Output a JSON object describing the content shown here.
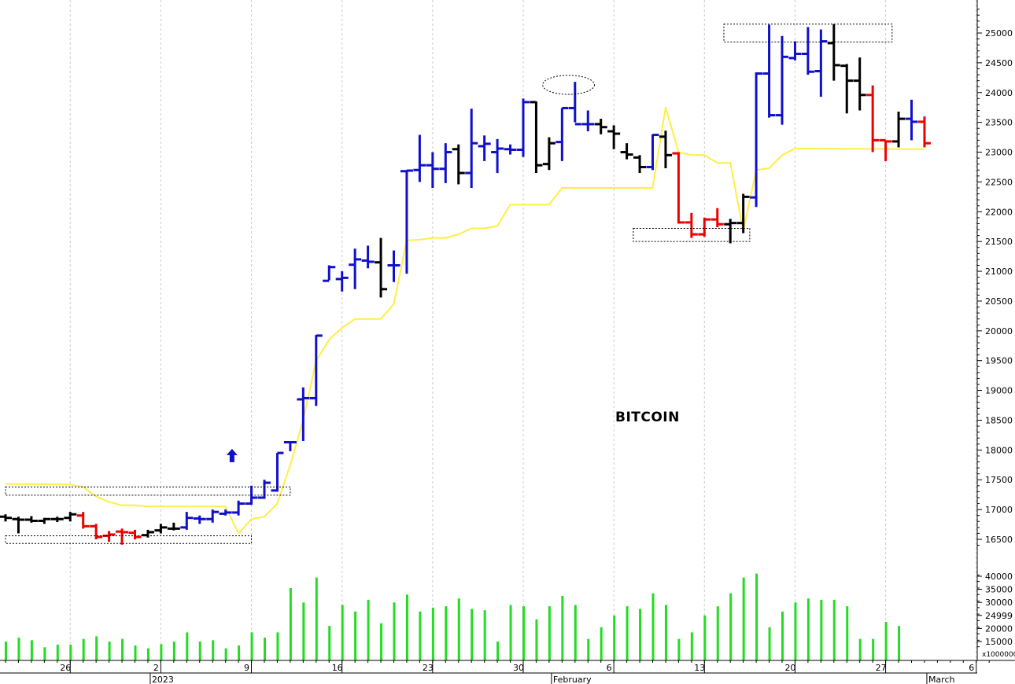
{
  "chart_data": {
    "type": "ohlc",
    "title": "BITCOIN",
    "colors": {
      "up": "#1010cc",
      "neutral": "#000000",
      "down": "#ee0000",
      "signal_line": "#ffee44",
      "volume": "#22dd22",
      "grid": "#cccccc"
    },
    "price_axis": {
      "ylim": [
        16350,
        25350
      ],
      "ticks": [
        16500,
        17000,
        17500,
        18000,
        18500,
        19000,
        19500,
        20000,
        20500,
        21000,
        21500,
        22000,
        22500,
        23000,
        23500,
        24000,
        24500,
        25000
      ]
    },
    "volume_axis": {
      "ylim": [
        12000,
        42000
      ],
      "tick_labels": [
        "15000",
        "20000",
        "24999",
        "30000",
        "35000",
        "40000"
      ],
      "unit_label": "x1000000"
    },
    "x_axis": {
      "day_ticks": [
        {
          "label": "26",
          "day": 5
        },
        {
          "label": "2",
          "day": 12
        },
        {
          "label": "9",
          "day": 19
        },
        {
          "label": "16",
          "day": 26
        },
        {
          "label": "23",
          "day": 33
        },
        {
          "label": "30",
          "day": 40
        },
        {
          "label": "6",
          "day": 47
        },
        {
          "label": "13",
          "day": 54
        },
        {
          "label": "20",
          "day": 61
        },
        {
          "label": "27",
          "day": 68
        },
        {
          "label": "6",
          "day": 75
        }
      ],
      "period_labels": [
        {
          "label": "2023",
          "day": 11
        },
        {
          "label": "February",
          "day": 42
        },
        {
          "label": "March",
          "day": 71
        }
      ]
    },
    "bars": [
      {
        "day": 0,
        "o": 16880,
        "h": 16920,
        "l": 16800,
        "c": 16860,
        "color": "neutral"
      },
      {
        "day": 1,
        "o": 16840,
        "h": 16880,
        "l": 16600,
        "c": 16830,
        "color": "neutral"
      },
      {
        "day": 2,
        "o": 16830,
        "h": 16890,
        "l": 16780,
        "c": 16810,
        "color": "neutral"
      },
      {
        "day": 3,
        "o": 16810,
        "h": 16860,
        "l": 16760,
        "c": 16840,
        "color": "neutral"
      },
      {
        "day": 4,
        "o": 16840,
        "h": 16880,
        "l": 16790,
        "c": 16840,
        "color": "neutral"
      },
      {
        "day": 5,
        "o": 16860,
        "h": 16960,
        "l": 16800,
        "c": 16920,
        "color": "neutral"
      },
      {
        "day": 6,
        "o": 16900,
        "h": 16960,
        "l": 16680,
        "c": 16720,
        "color": "down"
      },
      {
        "day": 7,
        "o": 16720,
        "h": 16760,
        "l": 16500,
        "c": 16540,
        "color": "down"
      },
      {
        "day": 8,
        "o": 16560,
        "h": 16640,
        "l": 16460,
        "c": 16580,
        "color": "down"
      },
      {
        "day": 9,
        "o": 16630,
        "h": 16680,
        "l": 16410,
        "c": 16620,
        "color": "down"
      },
      {
        "day": 10,
        "o": 16610,
        "h": 16660,
        "l": 16500,
        "c": 16540,
        "color": "down"
      },
      {
        "day": 11,
        "o": 16570,
        "h": 16660,
        "l": 16530,
        "c": 16620,
        "color": "neutral"
      },
      {
        "day": 12,
        "o": 16650,
        "h": 16760,
        "l": 16600,
        "c": 16700,
        "color": "neutral"
      },
      {
        "day": 13,
        "o": 16680,
        "h": 16780,
        "l": 16650,
        "c": 16680,
        "color": "neutral"
      },
      {
        "day": 14,
        "o": 16700,
        "h": 16960,
        "l": 16660,
        "c": 16860,
        "color": "up"
      },
      {
        "day": 15,
        "o": 16850,
        "h": 16900,
        "l": 16760,
        "c": 16840,
        "color": "up"
      },
      {
        "day": 16,
        "o": 16840,
        "h": 17000,
        "l": 16780,
        "c": 16960,
        "color": "up"
      },
      {
        "day": 17,
        "o": 16930,
        "h": 17000,
        "l": 16900,
        "c": 16950,
        "color": "up"
      },
      {
        "day": 18,
        "o": 16950,
        "h": 17150,
        "l": 16900,
        "c": 17100,
        "color": "up"
      },
      {
        "day": 19,
        "o": 17100,
        "h": 17400,
        "l": 17080,
        "c": 17200,
        "color": "up"
      },
      {
        "day": 20,
        "o": 17200,
        "h": 17500,
        "l": 17180,
        "c": 17450,
        "color": "up"
      },
      {
        "day": 21,
        "o": 17320,
        "h": 17950,
        "l": 17300,
        "c": 17950,
        "color": "up"
      },
      {
        "day": 22,
        "o": 18130,
        "h": 18130,
        "l": 17980,
        "c": 18130,
        "color": "up"
      },
      {
        "day": 23,
        "o": 18850,
        "h": 19050,
        "l": 18150,
        "c": 18870,
        "color": "up"
      },
      {
        "day": 24,
        "o": 18870,
        "h": 19930,
        "l": 18740,
        "c": 19920,
        "color": "up"
      },
      {
        "day": 25,
        "o": 20840,
        "h": 21100,
        "l": 20850,
        "c": 21070,
        "color": "up"
      },
      {
        "day": 26,
        "o": 20870,
        "h": 21000,
        "l": 20660,
        "c": 20890,
        "color": "up"
      },
      {
        "day": 27,
        "o": 21110,
        "h": 21380,
        "l": 20700,
        "c": 21200,
        "color": "up"
      },
      {
        "day": 28,
        "o": 21180,
        "h": 21430,
        "l": 21050,
        "c": 21160,
        "color": "up"
      },
      {
        "day": 29,
        "o": 21150,
        "h": 21560,
        "l": 20560,
        "c": 20700,
        "color": "neutral"
      },
      {
        "day": 30,
        "o": 21100,
        "h": 21350,
        "l": 20820,
        "c": 21100,
        "color": "up"
      },
      {
        "day": 31,
        "o": 22680,
        "h": 22700,
        "l": 20960,
        "c": 22690,
        "color": "up"
      },
      {
        "day": 32,
        "o": 22700,
        "h": 23290,
        "l": 22500,
        "c": 22780,
        "color": "up"
      },
      {
        "day": 33,
        "o": 22780,
        "h": 23000,
        "l": 22400,
        "c": 22720,
        "color": "up"
      },
      {
        "day": 34,
        "o": 22720,
        "h": 23150,
        "l": 22480,
        "c": 23000,
        "color": "up"
      },
      {
        "day": 35,
        "o": 23050,
        "h": 23130,
        "l": 22460,
        "c": 22650,
        "color": "neutral"
      },
      {
        "day": 36,
        "o": 22650,
        "h": 23730,
        "l": 22400,
        "c": 23150,
        "color": "up"
      },
      {
        "day": 37,
        "o": 23100,
        "h": 23280,
        "l": 22850,
        "c": 23140,
        "color": "up"
      },
      {
        "day": 38,
        "o": 23000,
        "h": 23220,
        "l": 22650,
        "c": 23060,
        "color": "up"
      },
      {
        "day": 39,
        "o": 23050,
        "h": 23130,
        "l": 22960,
        "c": 23040,
        "color": "up"
      },
      {
        "day": 40,
        "o": 23040,
        "h": 23900,
        "l": 22920,
        "c": 23840,
        "color": "up"
      },
      {
        "day": 41,
        "o": 23840,
        "h": 23850,
        "l": 22650,
        "c": 22780,
        "color": "neutral"
      },
      {
        "day": 42,
        "o": 22800,
        "h": 23250,
        "l": 22700,
        "c": 23150,
        "color": "neutral"
      },
      {
        "day": 43,
        "o": 23170,
        "h": 23740,
        "l": 22850,
        "c": 23740,
        "color": "up"
      },
      {
        "day": 44,
        "o": 23740,
        "h": 24180,
        "l": 23500,
        "c": 23470,
        "color": "up"
      },
      {
        "day": 45,
        "o": 23470,
        "h": 23700,
        "l": 23350,
        "c": 23470,
        "color": "up"
      },
      {
        "day": 46,
        "o": 23470,
        "h": 23560,
        "l": 23300,
        "c": 23420,
        "color": "neutral"
      },
      {
        "day": 47,
        "o": 23350,
        "h": 23450,
        "l": 23050,
        "c": 23310,
        "color": "neutral"
      },
      {
        "day": 48,
        "o": 23000,
        "h": 23150,
        "l": 22880,
        "c": 22960,
        "color": "neutral"
      },
      {
        "day": 49,
        "o": 22910,
        "h": 22950,
        "l": 22650,
        "c": 22750,
        "color": "neutral"
      },
      {
        "day": 50,
        "o": 22750,
        "h": 23300,
        "l": 22700,
        "c": 23290,
        "color": "up"
      },
      {
        "day": 51,
        "o": 23260,
        "h": 23360,
        "l": 22730,
        "c": 22950,
        "color": "neutral"
      },
      {
        "day": 52,
        "o": 22980,
        "h": 23000,
        "l": 21800,
        "c": 21820,
        "color": "down"
      },
      {
        "day": 53,
        "o": 21820,
        "h": 21980,
        "l": 21560,
        "c": 21620,
        "color": "down"
      },
      {
        "day": 54,
        "o": 21620,
        "h": 21900,
        "l": 21580,
        "c": 21870,
        "color": "down"
      },
      {
        "day": 55,
        "o": 21870,
        "h": 22060,
        "l": 21740,
        "c": 21790,
        "color": "down"
      },
      {
        "day": 56,
        "o": 21790,
        "h": 21880,
        "l": 21470,
        "c": 21810,
        "color": "neutral"
      },
      {
        "day": 57,
        "o": 21810,
        "h": 22300,
        "l": 21640,
        "c": 22250,
        "color": "neutral"
      },
      {
        "day": 58,
        "o": 22240,
        "h": 24340,
        "l": 22080,
        "c": 24320,
        "color": "up"
      },
      {
        "day": 59,
        "o": 24320,
        "h": 25140,
        "l": 23580,
        "c": 23620,
        "color": "up"
      },
      {
        "day": 60,
        "o": 23620,
        "h": 24950,
        "l": 23460,
        "c": 24600,
        "color": "up"
      },
      {
        "day": 61,
        "o": 24580,
        "h": 24860,
        "l": 24540,
        "c": 24650,
        "color": "up"
      },
      {
        "day": 62,
        "o": 24650,
        "h": 25100,
        "l": 24300,
        "c": 24350,
        "color": "up"
      },
      {
        "day": 63,
        "o": 24360,
        "h": 25060,
        "l": 23930,
        "c": 24860,
        "color": "up"
      },
      {
        "day": 64,
        "o": 24830,
        "h": 25150,
        "l": 24200,
        "c": 24460,
        "color": "neutral"
      },
      {
        "day": 65,
        "o": 24450,
        "h": 24480,
        "l": 23650,
        "c": 24200,
        "color": "neutral"
      },
      {
        "day": 66,
        "o": 24200,
        "h": 24590,
        "l": 23700,
        "c": 23960,
        "color": "neutral"
      },
      {
        "day": 67,
        "o": 23960,
        "h": 24120,
        "l": 23000,
        "c": 23200,
        "color": "down"
      },
      {
        "day": 68,
        "o": 23200,
        "h": 23200,
        "l": 22850,
        "c": 23180,
        "color": "down"
      },
      {
        "day": 69,
        "o": 23180,
        "h": 23680,
        "l": 23080,
        "c": 23560,
        "color": "neutral"
      },
      {
        "day": 70,
        "o": 23560,
        "h": 23880,
        "l": 23200,
        "c": 23510,
        "color": "up"
      },
      {
        "day": 71,
        "o": 23510,
        "h": 23600,
        "l": 23080,
        "c": 23150,
        "color": "down"
      }
    ],
    "signal_line": [
      {
        "day": 0,
        "v": 17430
      },
      {
        "day": 5,
        "v": 17420
      },
      {
        "day": 6,
        "v": 17380
      },
      {
        "day": 7,
        "v": 17220
      },
      {
        "day": 8,
        "v": 17130
      },
      {
        "day": 9,
        "v": 17070
      },
      {
        "day": 10,
        "v": 17070
      },
      {
        "day": 11,
        "v": 17050
      },
      {
        "day": 17,
        "v": 17050
      },
      {
        "day": 18,
        "v": 16600
      },
      {
        "day": 19,
        "v": 16840
      },
      {
        "day": 20,
        "v": 16880
      },
      {
        "day": 21,
        "v": 17100
      },
      {
        "day": 22,
        "v": 17750
      },
      {
        "day": 23,
        "v": 18500
      },
      {
        "day": 24,
        "v": 19500
      },
      {
        "day": 25,
        "v": 19850
      },
      {
        "day": 26,
        "v": 20050
      },
      {
        "day": 27,
        "v": 20200
      },
      {
        "day": 29,
        "v": 20200
      },
      {
        "day": 30,
        "v": 20450
      },
      {
        "day": 31,
        "v": 21520
      },
      {
        "day": 32,
        "v": 21530
      },
      {
        "day": 33,
        "v": 21560
      },
      {
        "day": 34,
        "v": 21560
      },
      {
        "day": 35,
        "v": 21620
      },
      {
        "day": 36,
        "v": 21720
      },
      {
        "day": 37,
        "v": 21720
      },
      {
        "day": 38,
        "v": 21760
      },
      {
        "day": 39,
        "v": 22120
      },
      {
        "day": 42,
        "v": 22120
      },
      {
        "day": 43,
        "v": 22400
      },
      {
        "day": 50,
        "v": 22400
      },
      {
        "day": 51,
        "v": 23750
      },
      {
        "day": 52,
        "v": 23000
      },
      {
        "day": 53,
        "v": 22950
      },
      {
        "day": 54,
        "v": 22950
      },
      {
        "day": 55,
        "v": 22820
      },
      {
        "day": 56,
        "v": 22820
      },
      {
        "day": 57,
        "v": 21680
      },
      {
        "day": 58,
        "v": 22700
      },
      {
        "day": 59,
        "v": 22730
      },
      {
        "day": 60,
        "v": 22950
      },
      {
        "day": 61,
        "v": 23060
      },
      {
        "day": 71,
        "v": 23050
      }
    ],
    "volume": [
      {
        "day": 0,
        "v": 15000
      },
      {
        "day": 1,
        "v": 16500
      },
      {
        "day": 2,
        "v": 15500
      },
      {
        "day": 3,
        "v": 12800
      },
      {
        "day": 4,
        "v": 13800
      },
      {
        "day": 5,
        "v": 13800
      },
      {
        "day": 6,
        "v": 16000
      },
      {
        "day": 7,
        "v": 17000
      },
      {
        "day": 8,
        "v": 15000
      },
      {
        "day": 9,
        "v": 16000
      },
      {
        "day": 10,
        "v": 13500
      },
      {
        "day": 11,
        "v": 12400
      },
      {
        "day": 12,
        "v": 14000
      },
      {
        "day": 13,
        "v": 15000
      },
      {
        "day": 14,
        "v": 18500
      },
      {
        "day": 15,
        "v": 15000
      },
      {
        "day": 16,
        "v": 15500
      },
      {
        "day": 17,
        "v": 12400
      },
      {
        "day": 18,
        "v": 13500
      },
      {
        "day": 19,
        "v": 18500
      },
      {
        "day": 20,
        "v": 16500
      },
      {
        "day": 21,
        "v": 18500
      },
      {
        "day": 22,
        "v": 35500
      },
      {
        "day": 23,
        "v": 30000
      },
      {
        "day": 24,
        "v": 39500
      },
      {
        "day": 25,
        "v": 21000
      },
      {
        "day": 26,
        "v": 29000
      },
      {
        "day": 27,
        "v": 26500
      },
      {
        "day": 28,
        "v": 31000
      },
      {
        "day": 29,
        "v": 22000
      },
      {
        "day": 30,
        "v": 30000
      },
      {
        "day": 31,
        "v": 33000
      },
      {
        "day": 32,
        "v": 26500
      },
      {
        "day": 33,
        "v": 28000
      },
      {
        "day": 34,
        "v": 28500
      },
      {
        "day": 35,
        "v": 31500
      },
      {
        "day": 36,
        "v": 27500
      },
      {
        "day": 37,
        "v": 27000
      },
      {
        "day": 38,
        "v": 15000
      },
      {
        "day": 39,
        "v": 29000
      },
      {
        "day": 40,
        "v": 28500
      },
      {
        "day": 41,
        "v": 23500
      },
      {
        "day": 42,
        "v": 28500
      },
      {
        "day": 43,
        "v": 32500
      },
      {
        "day": 44,
        "v": 29000
      },
      {
        "day": 45,
        "v": 16000
      },
      {
        "day": 46,
        "v": 20500
      },
      {
        "day": 47,
        "v": 25000
      },
      {
        "day": 48,
        "v": 28500
      },
      {
        "day": 49,
        "v": 27500
      },
      {
        "day": 50,
        "v": 33500
      },
      {
        "day": 51,
        "v": 29000
      },
      {
        "day": 52,
        "v": 16000
      },
      {
        "day": 53,
        "v": 18500
      },
      {
        "day": 54,
        "v": 25000
      },
      {
        "day": 55,
        "v": 28500
      },
      {
        "day": 56,
        "v": 33500
      },
      {
        "day": 57,
        "v": 39500
      },
      {
        "day": 58,
        "v": 41000
      },
      {
        "day": 59,
        "v": 20500
      },
      {
        "day": 60,
        "v": 26500
      },
      {
        "day": 61,
        "v": 30000
      },
      {
        "day": 62,
        "v": 31500
      },
      {
        "day": 63,
        "v": 31000
      },
      {
        "day": 64,
        "v": 31000
      },
      {
        "day": 65,
        "v": 28500
      },
      {
        "day": 66,
        "v": 16000
      },
      {
        "day": 67,
        "v": 16000
      },
      {
        "day": 68,
        "v": 22500
      },
      {
        "day": 69,
        "v": 21000
      }
    ],
    "annotations": {
      "boxes": [
        {
          "day_from": 0,
          "day_to": 22,
          "v_from": 17240,
          "v_to": 17380
        },
        {
          "day_from": 0,
          "day_to": 19,
          "v_from": 16430,
          "v_to": 16560
        },
        {
          "day_from": 48.5,
          "day_to": 57.5,
          "v_from": 21500,
          "v_to": 21720
        },
        {
          "day_from": 55.5,
          "day_to": 68.5,
          "v_from": 24850,
          "v_to": 25150
        }
      ],
      "ellipses": [
        {
          "day": 43.5,
          "v": 24130,
          "rx_days": 2,
          "ry_units": 160
        }
      ],
      "arrows": [
        {
          "day": 17.5,
          "v": 17900,
          "direction": "up"
        }
      ]
    }
  }
}
